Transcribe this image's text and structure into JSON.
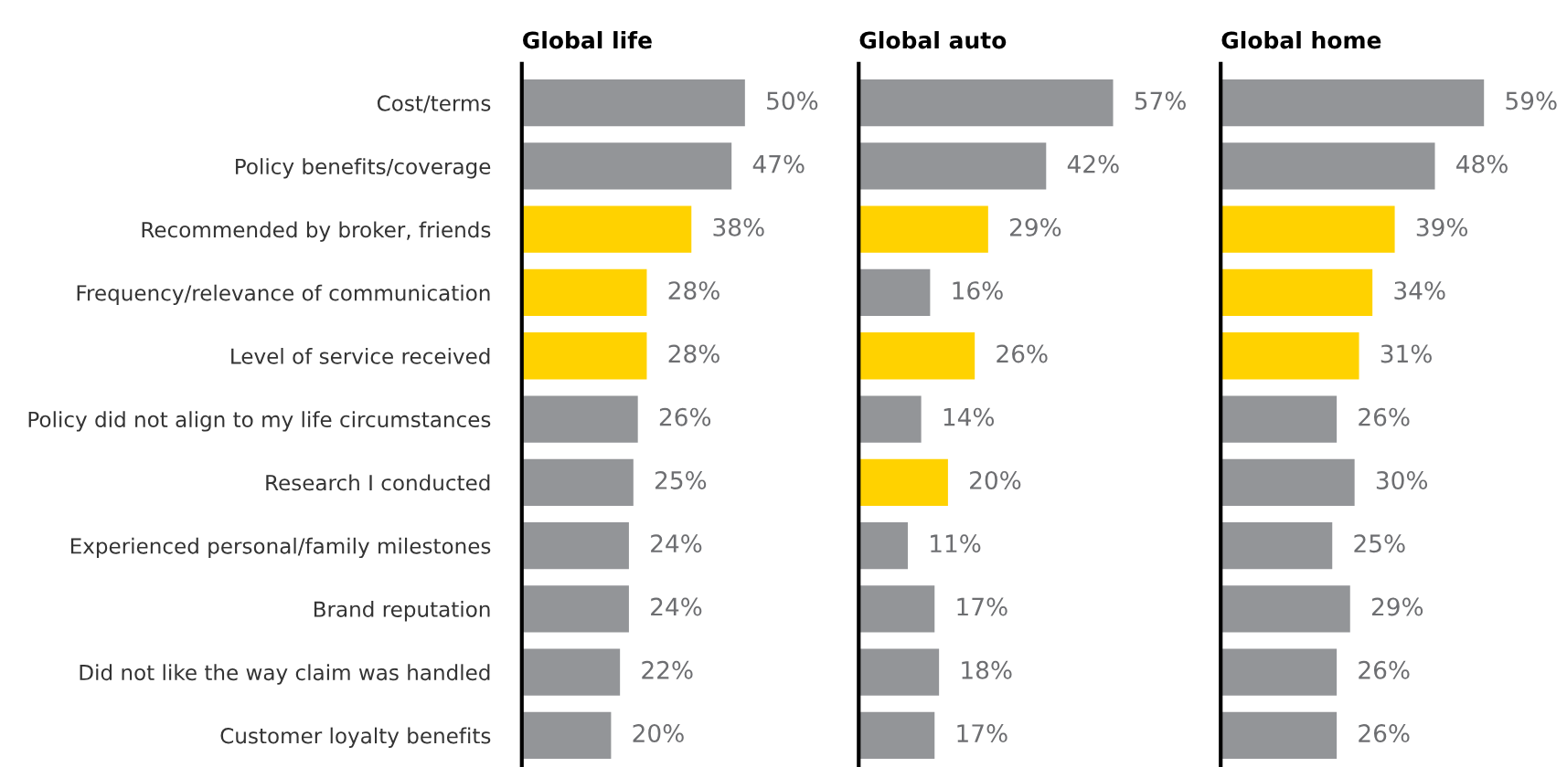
{
  "chart_data": [
    {
      "type": "bar",
      "orientation": "horizontal",
      "title": "Global life",
      "tick_labels": "y",
      "categories": [
        "Cost/terms",
        "Policy benefits/coverage",
        "Recommended by broker, friends",
        "Frequency/relevance of communication",
        "Level of service received",
        "Policy did not align to my life circumstances",
        "Research I conducted",
        "Experienced personal/family milestones",
        "Brand reputation",
        "Did not like the way claim was handled",
        "Customer loyalty benefits"
      ],
      "values": [
        50,
        47,
        38,
        28,
        28,
        26,
        25,
        24,
        24,
        22,
        20
      ],
      "value_labels": [
        "50%",
        "47%",
        "38%",
        "28%",
        "28%",
        "26%",
        "25%",
        "24%",
        "24%",
        "22%",
        "20%"
      ],
      "colors": [
        "#939598",
        "#939598",
        "#ffd200",
        "#ffd200",
        "#ffd200",
        "#939598",
        "#939598",
        "#939598",
        "#939598",
        "#939598",
        "#939598"
      ]
    },
    {
      "type": "bar",
      "orientation": "horizontal",
      "title": "Global auto",
      "tick_labels": false,
      "values": [
        57,
        42,
        29,
        16,
        26,
        14,
        20,
        11,
        17,
        18,
        17
      ],
      "value_labels": [
        "57%",
        "42%",
        "29%",
        "16%",
        "26%",
        "14%",
        "20%",
        "11%",
        "17%",
        "18%",
        "17%"
      ],
      "colors": [
        "#939598",
        "#939598",
        "#ffd200",
        "#939598",
        "#ffd200",
        "#939598",
        "#ffd200",
        "#939598",
        "#939598",
        "#939598",
        "#939598"
      ]
    },
    {
      "type": "bar",
      "orientation": "horizontal",
      "title": "Global home",
      "tick_labels": false,
      "values": [
        59,
        48,
        39,
        34,
        31,
        26,
        30,
        25,
        29,
        26,
        26
      ],
      "value_labels": [
        "59%",
        "48%",
        "39%",
        "34%",
        "31%",
        "26%",
        "30%",
        "25%",
        "29%",
        "26%",
        "26%"
      ],
      "colors": [
        "#939598",
        "#939598",
        "#ffd200",
        "#ffd200",
        "#ffd200",
        "#939598",
        "#939598",
        "#939598",
        "#939598",
        "#939598",
        "#939598"
      ]
    }
  ]
}
